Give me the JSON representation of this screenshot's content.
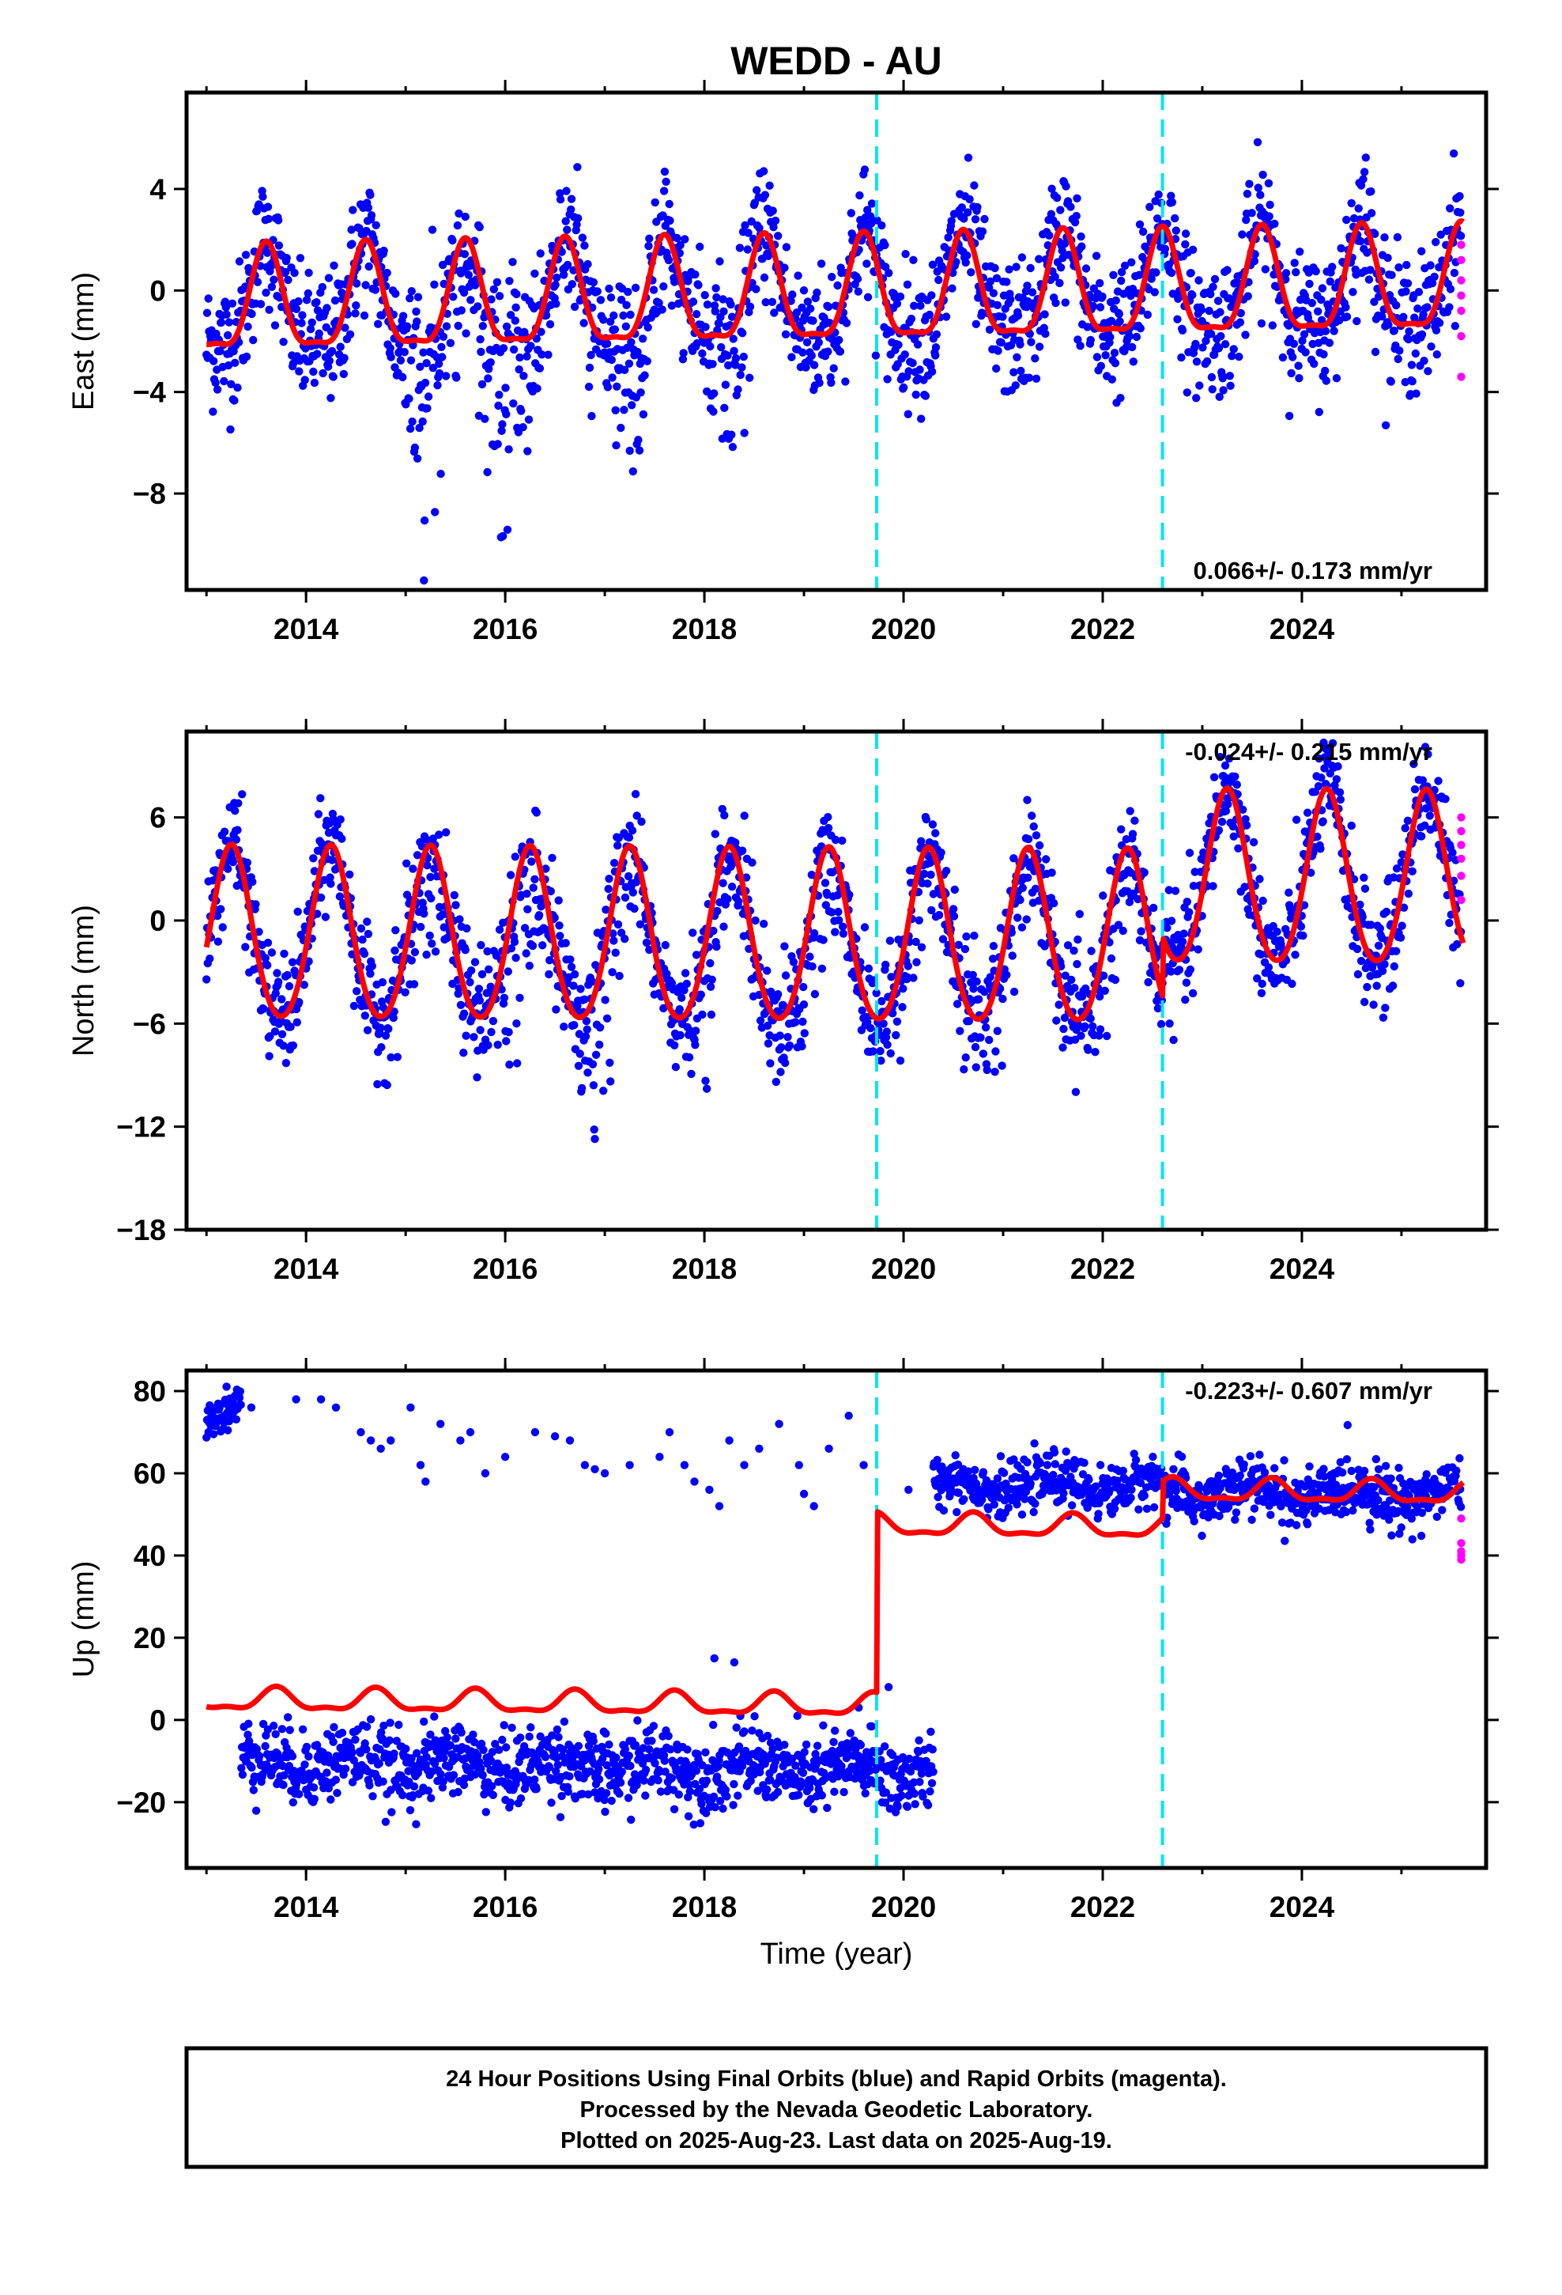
{
  "title": "WEDD - AU",
  "x_axis_label": "Time (year)",
  "footer": {
    "line1": "24 Hour Positions Using Final Orbits (blue) and Rapid Orbits (magenta).",
    "line2": "Processed by the Nevada Geodetic Laboratory.",
    "line3": "Plotted on 2025-Aug-23. Last data on 2025-Aug-19."
  },
  "colors": {
    "final_orbits": "#0000ff",
    "rapid_orbits": "#ff00ff",
    "model_fit": "#ff0000",
    "equipment_change": "#00e5ee"
  },
  "chart_data": [
    {
      "type": "scatter",
      "component": "east",
      "ylabel": "East (mm)",
      "xlim": [
        2012.8,
        2025.85
      ],
      "ylim": [
        -11.8,
        7.8
      ],
      "x_ticks": [
        2014,
        2016,
        2018,
        2020,
        2022,
        2024
      ],
      "y_ticks": [
        -8,
        -4,
        0,
        4
      ],
      "rate_label": "0.066+/- 0.173 mm/yr",
      "rate_position": "bottom-right",
      "breaks": [
        2019.73,
        2022.6
      ],
      "model": {
        "offset": -0.3,
        "trend": 0.066,
        "annual_amp": 2.0,
        "annual_phase": 2013.6,
        "semi_amp": 0.6,
        "steps": []
      },
      "scatter_spread": 1.3,
      "outlier_dips": [
        {
          "center": 2015.25,
          "width": 0.35,
          "depth": 9.0
        },
        {
          "center": 2016.0,
          "width": 0.45,
          "depth": 8.0
        },
        {
          "center": 2017.3,
          "width": 0.3,
          "depth": 6.0
        },
        {
          "center": 2018.3,
          "width": 0.3,
          "depth": 6.0
        }
      ],
      "outlier_bias": 0,
      "rapid_points": {
        "x": 2025.6,
        "y": [
          1.8,
          1.2,
          0.4,
          -0.2,
          -0.8,
          -1.8,
          -3.4
        ]
      }
    },
    {
      "type": "scatter",
      "component": "north",
      "ylabel": "North (mm)",
      "xlim": [
        2012.8,
        2025.85
      ],
      "ylim": [
        -18,
        11
      ],
      "x_ticks": [
        2014,
        2016,
        2018,
        2020,
        2022,
        2024
      ],
      "y_ticks": [
        -18,
        -12,
        -6,
        0,
        6
      ],
      "rate_label": "-0.024+/- 0.215 mm/yr",
      "rate_position": "top-right",
      "breaks": [
        2019.73,
        2022.6
      ],
      "model": {
        "offset": -1.2,
        "trend": -0.024,
        "annual_amp": 5.0,
        "annual_phase": 2013.25,
        "semi_amp": 0.5,
        "steps": [
          {
            "at": 2022.6,
            "size": 3.5
          }
        ]
      },
      "scatter_spread": 1.6,
      "outlier_dips": [
        {
          "center": 2015.25,
          "width": 0.3,
          "depth": 6.0
        },
        {
          "center": 2016.15,
          "width": 0.35,
          "depth": 9.0
        },
        {
          "center": 2017.0,
          "width": 0.35,
          "depth": 10.0
        },
        {
          "center": 2018.1,
          "width": 0.3,
          "depth": 8.0
        },
        {
          "center": 2019.1,
          "width": 0.3,
          "depth": 7.0
        },
        {
          "center": 2020.1,
          "width": 0.3,
          "depth": 5.0
        },
        {
          "center": 2021.1,
          "width": 0.3,
          "depth": 4.0
        },
        {
          "center": 2022.1,
          "width": 0.3,
          "depth": 4.0
        }
      ],
      "outlier_bias": 0,
      "rapid_points": {
        "x": 2025.6,
        "y": [
          6.0,
          5.2,
          4.4,
          3.6,
          2.6,
          1.2
        ]
      }
    },
    {
      "type": "scatter",
      "component": "up",
      "ylabel": "Up (mm)",
      "xlim": [
        2012.8,
        2025.85
      ],
      "ylim": [
        -36,
        85
      ],
      "x_ticks": [
        2014,
        2016,
        2018,
        2020,
        2022,
        2024
      ],
      "y_ticks": [
        -20,
        0,
        20,
        40,
        60,
        80
      ],
      "rate_label": "-0.223+/- 0.607 mm/yr",
      "rate_position": "top-right",
      "breaks": [
        2019.73,
        2022.6
      ],
      "model": {
        "offset": 3.5,
        "trend": -0.223,
        "annual_amp": 2.5,
        "annual_phase": 2013.7,
        "semi_amp": 1.0,
        "steps": [
          {
            "at": 2019.73,
            "size": 44.0
          },
          {
            "at": 2022.6,
            "size": 9.0
          }
        ]
      },
      "scatter_spread": 4.0,
      "data_segments": [
        {
          "start": 2013.0,
          "end": 2013.35,
          "level": 76,
          "spread": 2.5
        },
        {
          "start": 2013.35,
          "end": 2020.3,
          "level": -10,
          "spread": 4.5,
          "trend": -0.4
        },
        {
          "start": 2020.3,
          "end": 2022.6,
          "level": 57,
          "spread": 3.0
        },
        {
          "start": 2022.6,
          "end": 2025.6,
          "level": 55,
          "spread": 3.5
        }
      ],
      "sparse_points": [
        [
          2013.45,
          76
        ],
        [
          2013.9,
          78
        ],
        [
          2014.15,
          78
        ],
        [
          2014.3,
          76
        ],
        [
          2014.55,
          70
        ],
        [
          2014.65,
          68
        ],
        [
          2014.75,
          66
        ],
        [
          2014.85,
          68
        ],
        [
          2015.05,
          76
        ],
        [
          2015.15,
          62
        ],
        [
          2015.2,
          58
        ],
        [
          2015.35,
          72
        ],
        [
          2015.55,
          68
        ],
        [
          2015.65,
          70
        ],
        [
          2015.8,
          60
        ],
        [
          2016.0,
          64
        ],
        [
          2016.3,
          70
        ],
        [
          2016.65,
          68
        ],
        [
          2016.8,
          62
        ],
        [
          2017.0,
          60
        ],
        [
          2017.25,
          62
        ],
        [
          2017.55,
          64
        ],
        [
          2017.65,
          70
        ],
        [
          2017.8,
          62
        ],
        [
          2017.9,
          58
        ],
        [
          2018.05,
          56
        ],
        [
          2018.25,
          68
        ],
        [
          2018.4,
          62
        ],
        [
          2018.55,
          66
        ],
        [
          2018.75,
          72
        ],
        [
          2018.95,
          62
        ],
        [
          2019.1,
          52
        ],
        [
          2019.25,
          66
        ],
        [
          2019.45,
          74
        ],
        [
          2019.6,
          62
        ],
        [
          2020.05,
          56
        ],
        [
          2019.0,
          55
        ],
        [
          2018.15,
          52
        ],
        [
          2016.9,
          61
        ],
        [
          2016.5,
          69
        ],
        [
          2018.1,
          15
        ],
        [
          2018.3,
          14
        ],
        [
          2019.55,
          3
        ],
        [
          2019.85,
          8
        ]
      ],
      "rapid_points": {
        "x": 2025.6,
        "y": [
          49,
          43,
          41,
          40,
          39
        ]
      }
    }
  ]
}
